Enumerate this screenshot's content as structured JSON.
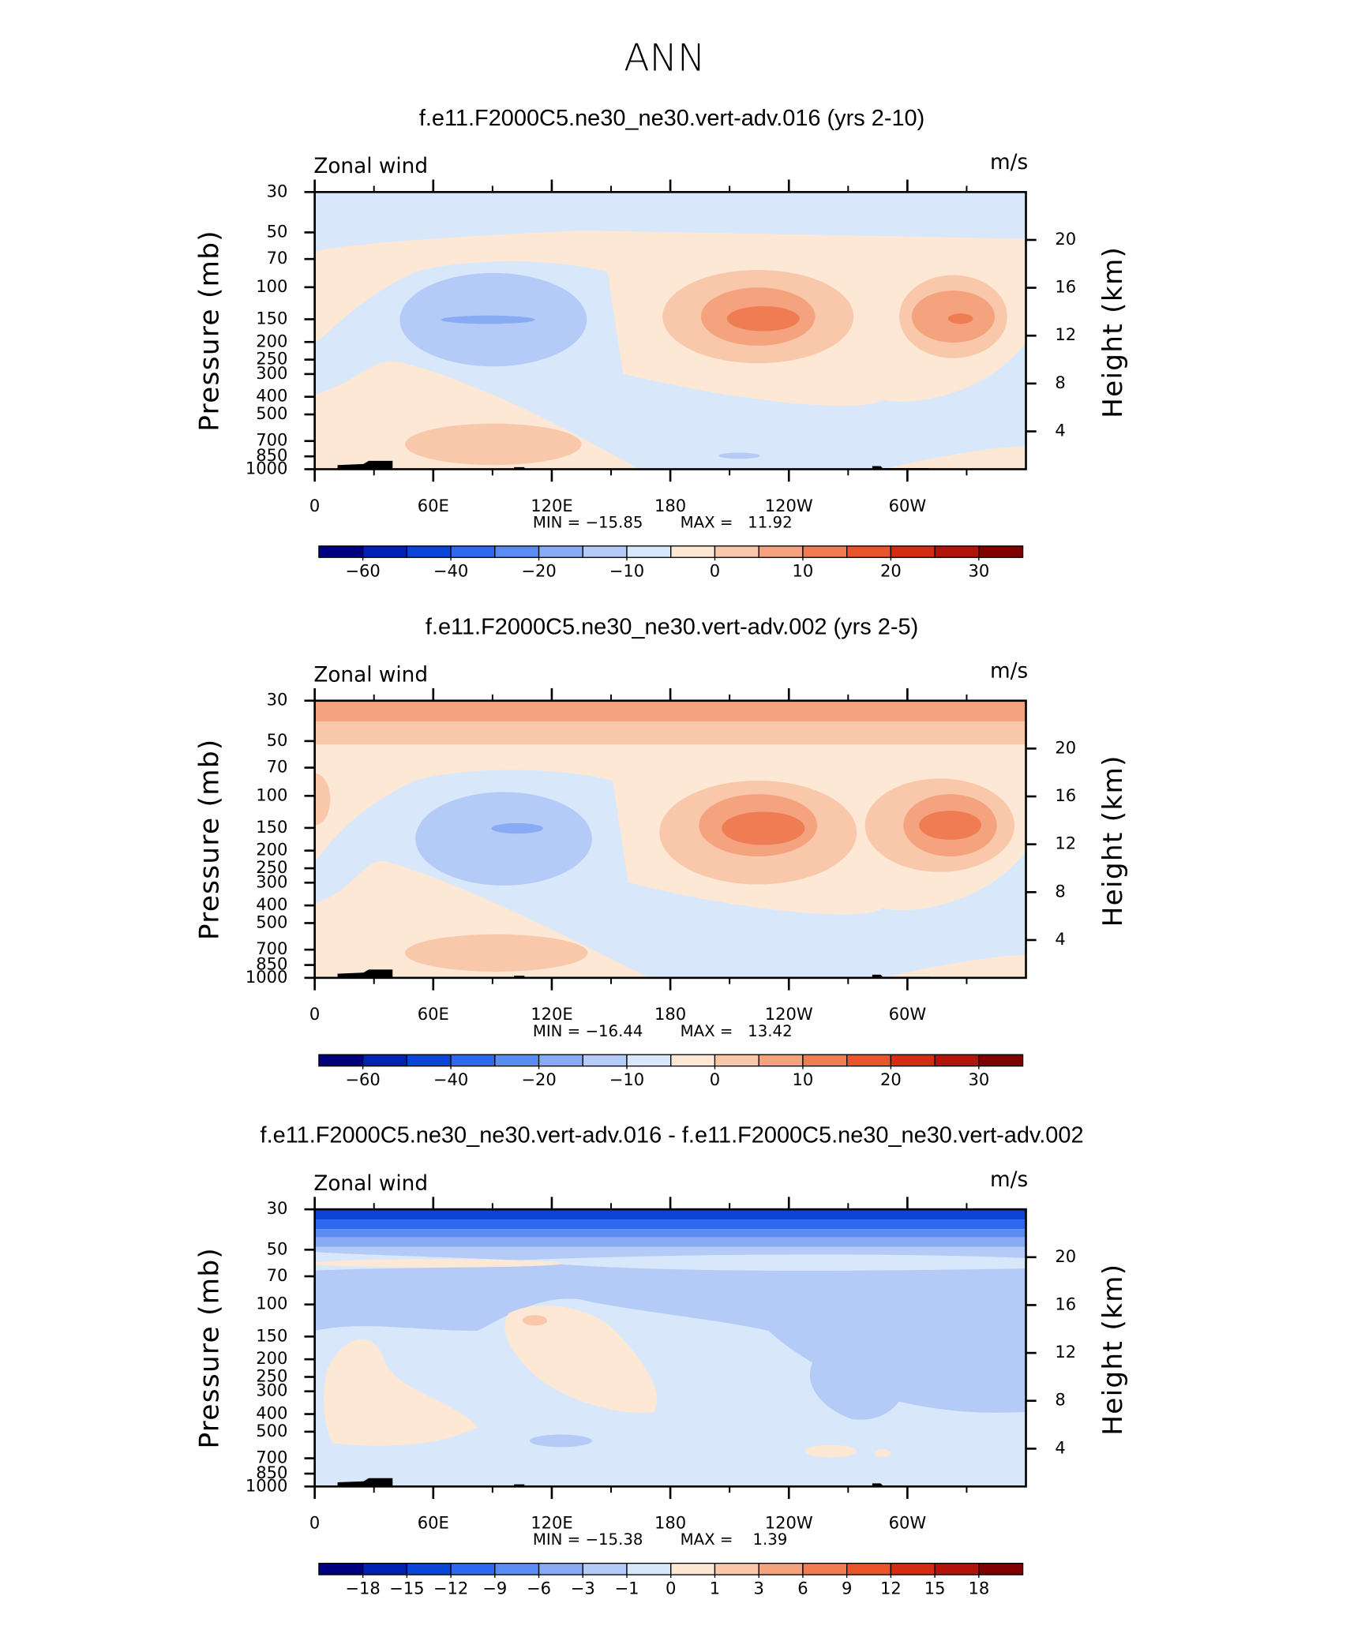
{
  "title": "ANN",
  "colors": [
    "#00007f",
    "#0022b4",
    "#0a45d8",
    "#2e68ee",
    "#5b8cf2",
    "#88abf4",
    "#b4caf7",
    "#d8e7fa",
    "#fde8d6",
    "#f9c8ab",
    "#f5a37f",
    "#ef7c52",
    "#e8542c",
    "#d22c12",
    "#b1140a",
    "#7f0000"
  ],
  "chart_data": [
    {
      "type": "contour",
      "title": "f.e11.F2000C5.ne30_ne30.vert-adv.016 (yrs 2-10)",
      "left_label": "Zonal wind",
      "right_label": "m/s",
      "ylabel": "Pressure (mb)",
      "y2label": "Height (km)",
      "xlim": [
        0,
        360
      ],
      "xticks": [
        0,
        {
          "value": 60,
          "label": "60E"
        },
        {
          "value": 120,
          "label": "120E"
        },
        180,
        {
          "value": 240,
          "label": "120W"
        },
        {
          "value": 300,
          "label": "60W"
        }
      ],
      "ylim": [
        1000,
        30
      ],
      "log_y": true,
      "yticks": [
        30,
        50,
        70,
        100,
        150,
        200,
        250,
        300,
        400,
        500,
        700,
        850,
        1000
      ],
      "y2lim": [
        0.84,
        24
      ],
      "y2ticks": [
        4,
        8,
        12,
        16,
        20
      ],
      "stats": [
        {
          "value": -15.85,
          "label": "MIN = −15.85"
        },
        {
          "value": 11.92,
          "label": "MAX =   11.92"
        }
      ],
      "colorbar": {
        "levels": [
          -60,
          -50,
          -40,
          -30,
          -20,
          -15,
          -10,
          -5,
          0,
          5,
          10,
          15,
          20,
          25,
          30
        ],
        "ticks": [
          {
            "value": -60,
            "label": "−60"
          },
          {
            "value": -40,
            "label": "−40"
          },
          {
            "value": -20,
            "label": "−20"
          },
          {
            "value": -10,
            "label": "−10"
          },
          0,
          10,
          20,
          30
        ]
      }
    },
    {
      "type": "contour",
      "title": "f.e11.F2000C5.ne30_ne30.vert-adv.002 (yrs 2-5)",
      "left_label": "Zonal wind",
      "right_label": "m/s",
      "ylabel": "Pressure (mb)",
      "y2label": "Height (km)",
      "xlim": [
        0,
        360
      ],
      "xticks": [
        0,
        {
          "value": 60,
          "label": "60E"
        },
        {
          "value": 120,
          "label": "120E"
        },
        180,
        {
          "value": 240,
          "label": "120W"
        },
        {
          "value": 300,
          "label": "60W"
        }
      ],
      "ylim": [
        1000,
        30
      ],
      "log_y": true,
      "yticks": [
        30,
        50,
        70,
        100,
        150,
        200,
        250,
        300,
        400,
        500,
        700,
        850,
        1000
      ],
      "y2lim": [
        0.84,
        24
      ],
      "y2ticks": [
        4,
        8,
        12,
        16,
        20
      ],
      "stats": [
        {
          "value": -16.44,
          "label": "MIN = −16.44"
        },
        {
          "value": 13.42,
          "label": "MAX =   13.42"
        }
      ],
      "colorbar": {
        "levels": [
          -60,
          -50,
          -40,
          -30,
          -20,
          -15,
          -10,
          -5,
          0,
          5,
          10,
          15,
          20,
          25,
          30
        ],
        "ticks": [
          {
            "value": -60,
            "label": "−60"
          },
          {
            "value": -40,
            "label": "−40"
          },
          {
            "value": -20,
            "label": "−20"
          },
          {
            "value": -10,
            "label": "−10"
          },
          0,
          10,
          20,
          30
        ]
      }
    },
    {
      "type": "contour",
      "title": "f.e11.F2000C5.ne30_ne30.vert-adv.016 - f.e11.F2000C5.ne30_ne30.vert-adv.002",
      "left_label": "Zonal wind",
      "right_label": "m/s",
      "ylabel": "Pressure (mb)",
      "y2label": "Height (km)",
      "xlim": [
        0,
        360
      ],
      "xticks": [
        0,
        {
          "value": 60,
          "label": "60E"
        },
        {
          "value": 120,
          "label": "120E"
        },
        180,
        {
          "value": 240,
          "label": "120W"
        },
        {
          "value": 300,
          "label": "60W"
        }
      ],
      "ylim": [
        1000,
        30
      ],
      "log_y": true,
      "yticks": [
        30,
        50,
        70,
        100,
        150,
        200,
        250,
        300,
        400,
        500,
        700,
        850,
        1000
      ],
      "y2lim": [
        0.84,
        24
      ],
      "y2ticks": [
        4,
        8,
        12,
        16,
        20
      ],
      "stats": [
        {
          "value": -15.38,
          "label": "MIN = −15.38"
        },
        {
          "value": 1.39,
          "label": "MAX =    1.39"
        }
      ],
      "colorbar": {
        "levels": [
          -18,
          -15,
          -12,
          -9,
          -6,
          -3,
          -1,
          0,
          1,
          3,
          6,
          9,
          12,
          15,
          18
        ],
        "ticks": [
          {
            "value": -18,
            "label": "−18"
          },
          {
            "value": -15,
            "label": "−15"
          },
          {
            "value": -12,
            "label": "−12"
          },
          {
            "value": -9,
            "label": "−9"
          },
          {
            "value": -6,
            "label": "−6"
          },
          {
            "value": -3,
            "label": "−3"
          },
          {
            "value": -1,
            "label": "−1"
          },
          0,
          1,
          3,
          6,
          9,
          12,
          15,
          18
        ]
      }
    }
  ]
}
